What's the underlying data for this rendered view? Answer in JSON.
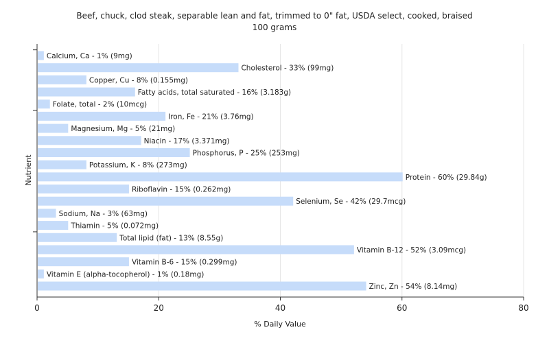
{
  "chart_data": {
    "type": "bar",
    "orientation": "horizontal",
    "title": "Beef, chuck, clod steak, separable lean and fat, trimmed to 0\" fat, USDA select, cooked, braised",
    "subtitle": "100 grams",
    "xlabel": "% Daily Value",
    "ylabel": "Nutrient",
    "xlim": [
      0,
      80
    ],
    "xticks": [
      0,
      20,
      40,
      60,
      80
    ],
    "grid": true,
    "bar_color": "#c6dcfa",
    "bars": [
      {
        "label": "Calcium, Ca - 1% (9mg)",
        "value": 1
      },
      {
        "label": "Cholesterol - 33% (99mg)",
        "value": 33
      },
      {
        "label": "Copper, Cu - 8% (0.155mg)",
        "value": 8
      },
      {
        "label": "Fatty acids, total saturated - 16% (3.183g)",
        "value": 16
      },
      {
        "label": "Folate, total - 2% (10mcg)",
        "value": 2
      },
      {
        "label": "Iron, Fe - 21% (3.76mg)",
        "value": 21
      },
      {
        "label": "Magnesium, Mg - 5% (21mg)",
        "value": 5
      },
      {
        "label": "Niacin - 17% (3.371mg)",
        "value": 17
      },
      {
        "label": "Phosphorus, P - 25% (253mg)",
        "value": 25
      },
      {
        "label": "Potassium, K - 8% (273mg)",
        "value": 8
      },
      {
        "label": "Protein - 60% (29.84g)",
        "value": 60
      },
      {
        "label": "Riboflavin - 15% (0.262mg)",
        "value": 15
      },
      {
        "label": "Selenium, Se - 42% (29.7mcg)",
        "value": 42
      },
      {
        "label": "Sodium, Na - 3% (63mg)",
        "value": 3
      },
      {
        "label": "Thiamin - 5% (0.072mg)",
        "value": 5
      },
      {
        "label": "Total lipid (fat) - 13% (8.55g)",
        "value": 13
      },
      {
        "label": "Vitamin B-12 - 52% (3.09mcg)",
        "value": 52
      },
      {
        "label": "Vitamin B-6 - 15% (0.299mg)",
        "value": 15
      },
      {
        "label": "Vitamin E (alpha-tocopherol) - 1% (0.18mg)",
        "value": 1
      },
      {
        "label": "Zinc, Zn - 54% (8.14mg)",
        "value": 54
      }
    ]
  }
}
